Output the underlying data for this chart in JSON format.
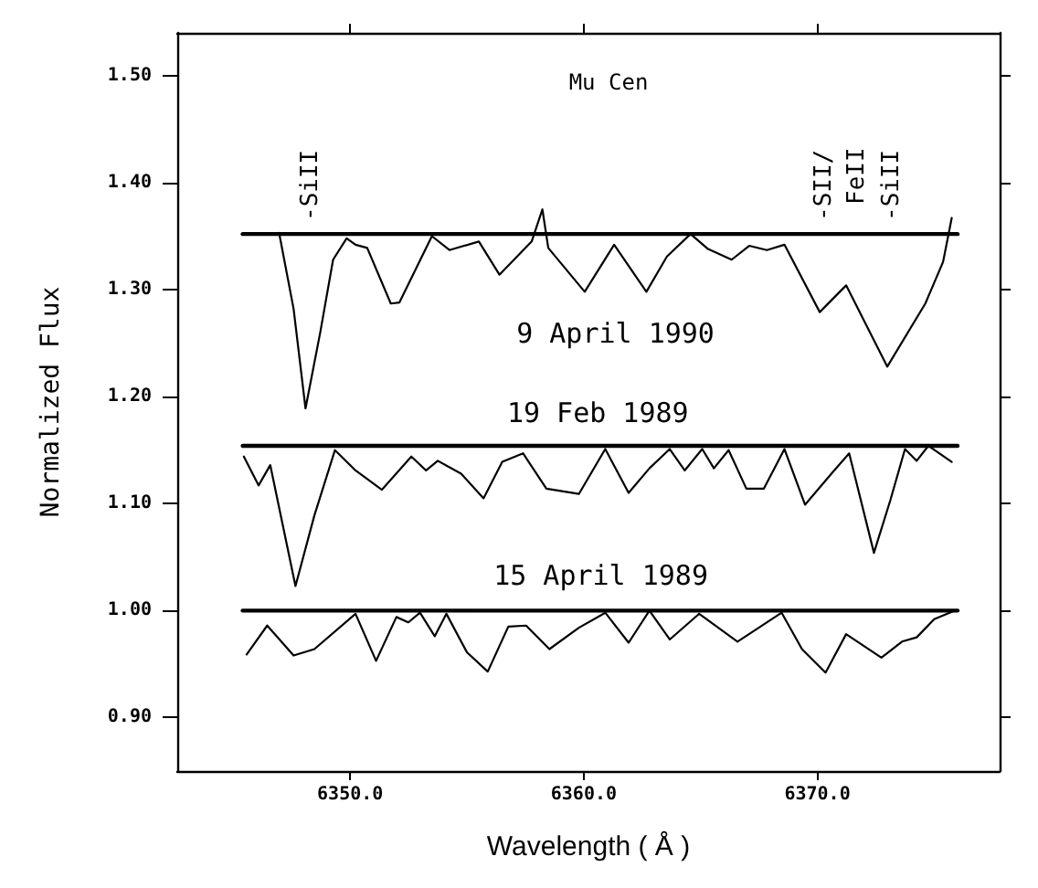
{
  "chart_data": {
    "type": "line",
    "title": "Mu Cen",
    "xlabel": "Wavelength ( Å )",
    "ylabel": "Normalized Flux",
    "xlim": [
      6342.6,
      6377.8
    ],
    "xticks": [
      {
        "value": 6350,
        "label": "6350.0"
      },
      {
        "value": 6360,
        "label": "6360.0"
      },
      {
        "value": 6370,
        "label": "6370.0"
      }
    ],
    "ylim": [
      0.85,
      1.54
    ],
    "yticks": [
      {
        "value": 0.9,
        "label": "0.90"
      },
      {
        "value": 1.0,
        "label": "1.00"
      },
      {
        "value": 1.1,
        "label": "1.10"
      },
      {
        "value": 1.2,
        "label": "1.20"
      },
      {
        "value": 1.3,
        "label": "1.30"
      },
      {
        "value": 1.4,
        "label": "1.40"
      },
      {
        "value": 1.5,
        "label": "1.50"
      }
    ],
    "marker": "none",
    "annotations": [
      "-SiII",
      "-SII/",
      "FeII",
      "-SiII"
    ],
    "series": [
      {
        "name": "9 April 1990",
        "color": "#000000",
        "x": [
          6346.96,
          6347.58,
          6348.09,
          6348.72,
          6349.27,
          6349.85,
          6350.23,
          6350.73,
          6351.74,
          6352.11,
          6353.5,
          6354.25,
          6355.51,
          6356.39,
          6357.77,
          6358.23,
          6358.48,
          6360.04,
          6361.3,
          6362.68,
          6363.56,
          6364.57,
          6365.32,
          6366.33,
          6367.08,
          6367.84,
          6368.59,
          6370.1,
          6371.23,
          6372.99,
          6374.62,
          6375.38,
          6375.75
        ],
        "values": [
          1.353,
          1.282,
          1.189,
          1.26,
          1.328,
          1.348,
          1.342,
          1.339,
          1.287,
          1.288,
          1.35,
          1.337,
          1.345,
          1.314,
          1.345,
          1.375,
          1.339,
          1.298,
          1.342,
          1.298,
          1.331,
          1.352,
          1.338,
          1.328,
          1.341,
          1.337,
          1.342,
          1.279,
          1.304,
          1.228,
          1.287,
          1.326,
          1.367
        ]
      },
      {
        "name": "19 Feb 1989",
        "color": "#000000",
        "x": [
          6345.45,
          6346.08,
          6346.58,
          6347.66,
          6348.47,
          6349.35,
          6350.23,
          6351.36,
          6352.62,
          6353.25,
          6353.75,
          6354.75,
          6355.71,
          6356.51,
          6357.4,
          6358.4,
          6359.79,
          6360.92,
          6361.92,
          6362.81,
          6363.68,
          6364.32,
          6365.07,
          6365.57,
          6366.2,
          6366.96,
          6367.71,
          6368.59,
          6369.47,
          6370.6,
          6371.36,
          6372.42,
          6373.12,
          6373.75,
          6374.25,
          6374.75,
          6375.75
        ],
        "values": [
          1.144,
          1.117,
          1.136,
          1.023,
          1.089,
          1.15,
          1.131,
          1.113,
          1.144,
          1.131,
          1.14,
          1.128,
          1.105,
          1.139,
          1.147,
          1.114,
          1.109,
          1.151,
          1.11,
          1.133,
          1.151,
          1.131,
          1.151,
          1.133,
          1.15,
          1.114,
          1.114,
          1.151,
          1.099,
          1.128,
          1.147,
          1.054,
          1.103,
          1.151,
          1.14,
          1.154,
          1.139
        ]
      },
      {
        "name": "15 April 1989",
        "color": "#000000",
        "x": [
          6345.57,
          6346.45,
          6347.58,
          6348.47,
          6350.23,
          6351.11,
          6351.98,
          6352.49,
          6352.99,
          6353.62,
          6354.12,
          6355.0,
          6355.89,
          6356.77,
          6357.53,
          6358.53,
          6359.79,
          6360.92,
          6361.92,
          6362.81,
          6363.68,
          6364.94,
          6366.58,
          6368.47,
          6369.34,
          6370.35,
          6371.23,
          6372.74,
          6373.62,
          6374.25,
          6375.0,
          6375.89
        ],
        "values": [
          0.959,
          0.986,
          0.958,
          0.964,
          0.997,
          0.953,
          0.994,
          0.989,
          0.998,
          0.976,
          0.997,
          0.961,
          0.943,
          0.985,
          0.986,
          0.964,
          0.984,
          0.998,
          0.97,
          1.0,
          0.973,
          0.997,
          0.971,
          0.998,
          0.964,
          0.942,
          0.978,
          0.956,
          0.971,
          0.975,
          0.992,
          1.0
        ]
      },
      {
        "color": "#000000",
        "x": [
          6345.4,
          6376.0
        ],
        "values": [
          1.352,
          1.352
        ]
      },
      {
        "color": "#000000",
        "x": [
          6345.4,
          6376.0
        ],
        "values": [
          1.154,
          1.154
        ]
      },
      {
        "color": "#000000",
        "x": [
          6345.4,
          6376.0
        ],
        "values": [
          1.0,
          1.0
        ]
      }
    ]
  }
}
